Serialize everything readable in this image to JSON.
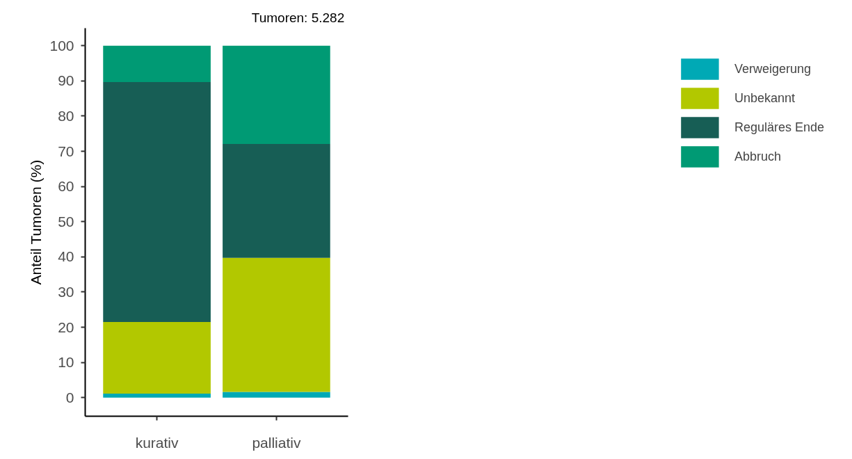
{
  "chart_data": {
    "type": "bar",
    "stacked": true,
    "ylabel": "Anteil Tumoren (%)",
    "annotations": [
      "Tumoren:  5.282"
    ],
    "categories": [
      "kurativ",
      "palliativ"
    ],
    "series": [
      {
        "name": "Verweigerung",
        "color": "#00a9b5",
        "values": [
          1.1,
          1.6
        ]
      },
      {
        "name": "Unbekannt",
        "color": "#b2c800",
        "values": [
          20.4,
          38.1
        ]
      },
      {
        "name": "Reguläres Ende",
        "color": "#175e55",
        "values": [
          68.2,
          32.4
        ]
      },
      {
        "name": "Abbruch",
        "color": "#009a74",
        "values": [
          10.3,
          27.9
        ]
      }
    ],
    "ylim": [
      -5.3,
      105
    ],
    "yticks": [
      0,
      10,
      20,
      30,
      40,
      50,
      60,
      70,
      80,
      90,
      100
    ],
    "grid": false,
    "legend": "right"
  }
}
